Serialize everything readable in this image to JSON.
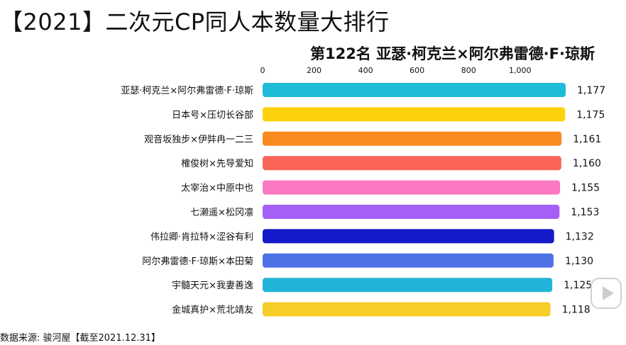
{
  "title": "【2021】二次元CP同人本数量大排行",
  "subtitle": "第122名 亚瑟·柯克兰×阿尔弗雷德·F·琼斯",
  "source": "数据来源: 骏河屋【截至2021.12.31】",
  "play_icon": "play-icon",
  "chart_data": {
    "type": "bar",
    "orientation": "horizontal",
    "title": "【2021】二次元CP同人本数量大排行",
    "subtitle": "第122名 亚瑟·柯克兰×阿尔弗雷德·F·琼斯",
    "xlim": [
      0,
      1177
    ],
    "ticks": [
      {
        "value": 0,
        "label": "0"
      },
      {
        "value": 200,
        "label": "200"
      },
      {
        "value": 400,
        "label": "400"
      },
      {
        "value": 600,
        "label": "600"
      },
      {
        "value": 800,
        "label": "800"
      },
      {
        "value": 1000,
        "label": "1,000"
      }
    ],
    "grid": false,
    "bars": [
      {
        "category": "亚瑟·柯克兰×阿尔弗雷德·F·琼斯",
        "value": 1177,
        "label": "1,177",
        "color": "#1ebcd8"
      },
      {
        "category": "日本号×压切长谷部",
        "value": 1175,
        "label": "1,175",
        "color": "#fdd20c"
      },
      {
        "category": "观音坂独步×伊弉冉一二三",
        "value": 1161,
        "label": "1,161",
        "color": "#f98a1e"
      },
      {
        "category": "榷俊树×先导爱知",
        "value": 1160,
        "label": "1,160",
        "color": "#fb6559"
      },
      {
        "category": "太宰治×中原中也",
        "value": 1155,
        "label": "1,155",
        "color": "#fb78c2"
      },
      {
        "category": "七濑遥×松冈凛",
        "value": 1153,
        "label": "1,153",
        "color": "#a55ef6"
      },
      {
        "category": "伟拉卿·肯拉特×涩谷有利",
        "value": 1132,
        "label": "1,132",
        "color": "#1419c9"
      },
      {
        "category": "阿尔弗雷德·F·琼斯×本田菊",
        "value": 1130,
        "label": "1,130",
        "color": "#4f73e6"
      },
      {
        "category": "宇髓天元×我妻善逸",
        "value": 1125,
        "label": "1,125",
        "color": "#21b4d9"
      },
      {
        "category": "金城真护×荒北靖友",
        "value": 1118,
        "label": "1,118",
        "color": "#f7cd27"
      }
    ]
  }
}
